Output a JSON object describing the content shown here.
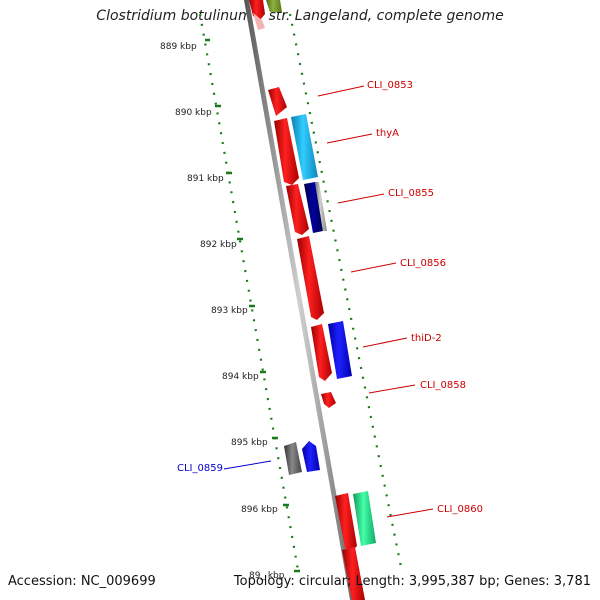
{
  "title": "Clostridium botulinum F str. Langeland, complete genome",
  "footer": {
    "accession": "Accession: NC_009699",
    "topology": "Topology: circular; Length: 3,995,387 bp; Genes: 3,781"
  },
  "ticks": [
    "889 kbp",
    "890 kbp",
    "891 kbp",
    "892 kbp",
    "893 kbp",
    "894 kbp",
    "895 kbp",
    "896 kbp",
    "89_ kbp"
  ],
  "gene_labels": [
    {
      "text": "CLI_0853",
      "color": "#cc0000"
    },
    {
      "text": "thyA",
      "color": "#cc0000"
    },
    {
      "text": "CLI_0855",
      "color": "#cc0000"
    },
    {
      "text": "CLI_0856",
      "color": "#cc0000"
    },
    {
      "text": "thiD-2",
      "color": "#cc0000"
    },
    {
      "text": "CLI_0858",
      "color": "#cc0000"
    },
    {
      "text": "CLI_0859",
      "color": "#0000cc"
    },
    {
      "text": "CLI_0860",
      "color": "#cc0000"
    }
  ],
  "colors": {
    "backbone": "#8a8a8a",
    "dotted_ring": "#1a7a1a",
    "gene_red": "#ee0000",
    "gene_cyan": "#22bbee",
    "gene_navy": "#000080",
    "gene_gray": "#aaaaaa",
    "gene_blue": "#0000ee",
    "gene_dark": "#555555",
    "gene_green": "#22dd88",
    "gene_olive": "#6b8e23"
  }
}
